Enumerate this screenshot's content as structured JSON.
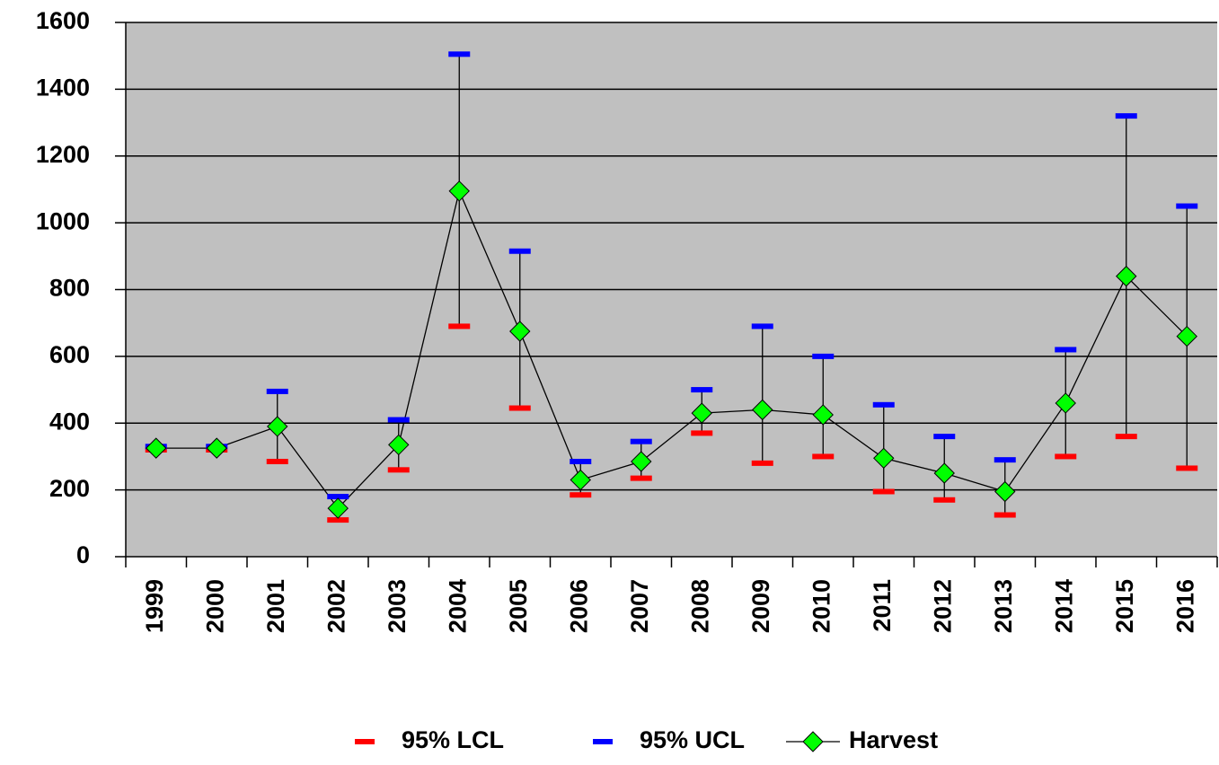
{
  "chart_data": {
    "type": "line",
    "categories": [
      "1999",
      "2000",
      "2001",
      "2002",
      "2003",
      "2004",
      "2005",
      "2006",
      "2007",
      "2008",
      "2009",
      "2010",
      "2011",
      "2012",
      "2013",
      "2014",
      "2015",
      "2016"
    ],
    "series": [
      {
        "name": "95% LCL",
        "color": "#ff0000",
        "marker": "dash",
        "line": false,
        "values": [
          320,
          320,
          285,
          110,
          260,
          690,
          445,
          185,
          235,
          370,
          280,
          300,
          195,
          170,
          125,
          300,
          360,
          265
        ]
      },
      {
        "name": "95% UCL",
        "color": "#0000ff",
        "marker": "dash",
        "line": false,
        "values": [
          330,
          330,
          495,
          180,
          410,
          1505,
          915,
          285,
          345,
          500,
          690,
          600,
          455,
          360,
          290,
          620,
          1320,
          1050
        ]
      },
      {
        "name": "Harvest",
        "color": "#00ff00",
        "marker": "diamond",
        "line": true,
        "values": [
          325,
          325,
          390,
          145,
          335,
          1095,
          675,
          230,
          285,
          430,
          440,
          425,
          295,
          250,
          195,
          460,
          840,
          660
        ]
      }
    ],
    "ylim": [
      0,
      1600
    ],
    "yticks": [
      0,
      200,
      400,
      600,
      800,
      1000,
      1200,
      1400,
      1600
    ],
    "grid": true,
    "background": "#c0c0c0",
    "legend": "bottom"
  }
}
